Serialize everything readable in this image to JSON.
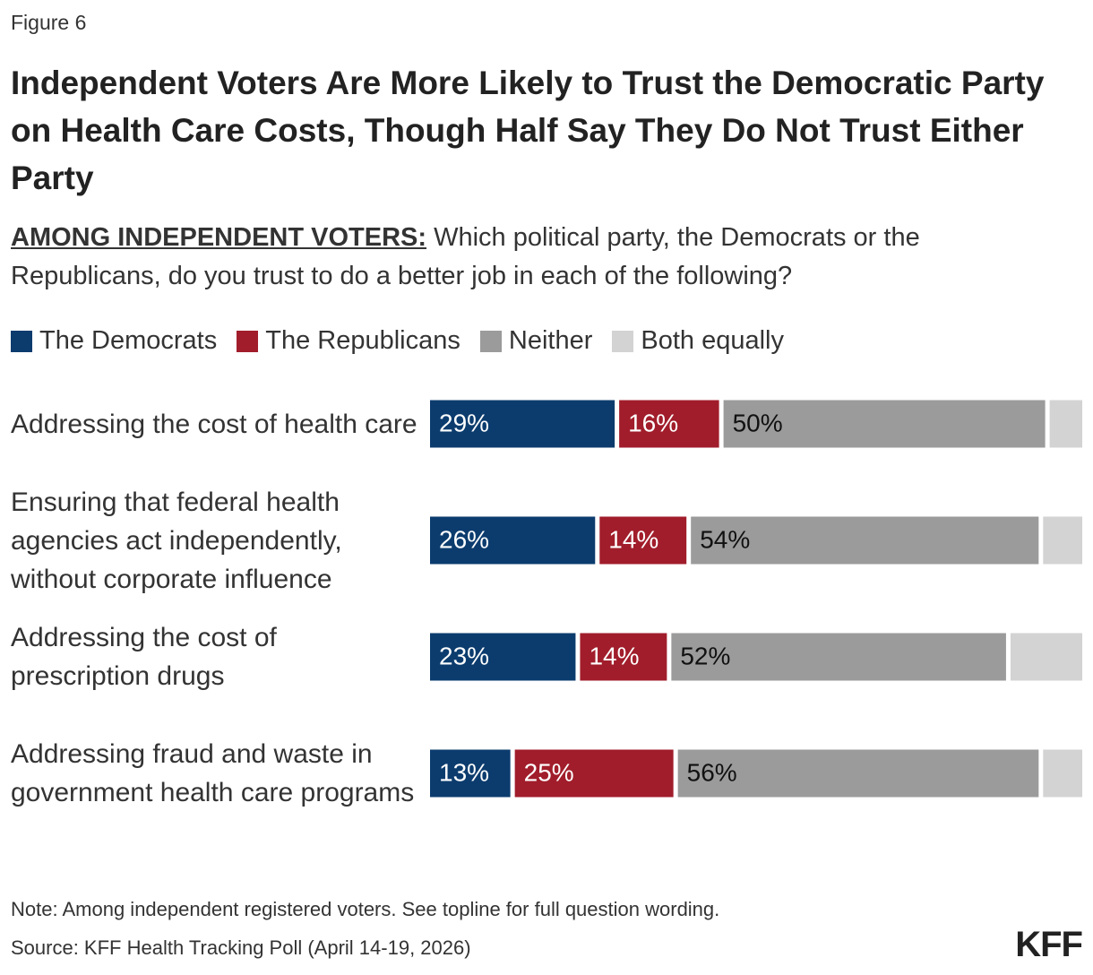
{
  "chart_data": {
    "type": "stacked-bar",
    "figure_label": "Figure 6",
    "title": "Independent Voters Are More Likely to Trust the Democratic Party on Health Care Costs, Though Half Say They Do Not Trust Either Party",
    "subtitle_lead": "AMONG INDEPENDENT VOTERS:",
    "subtitle": "Which political party, the Democrats or the Republicans, do you trust to do a better job in each of the following?",
    "categories": [
      "Addressing the cost of health care",
      "Ensuring that federal health agencies act independently, without corporate influence",
      "Addressing the cost of prescription drugs",
      "Addressing fraud and waste in government health care programs"
    ],
    "series": [
      {
        "name": "The Democrats",
        "color": "#0c3c6e",
        "values": [
          29,
          26,
          23,
          13
        ],
        "value_labels": [
          "29%",
          "26%",
          "23%",
          "13%"
        ]
      },
      {
        "name": "The Republicans",
        "color": "#a11d2b",
        "values": [
          16,
          14,
          14,
          25
        ],
        "value_labels": [
          "16%",
          "14%",
          "14%",
          "25%"
        ]
      },
      {
        "name": "Neither",
        "color": "#9b9b9b",
        "values": [
          50,
          54,
          52,
          56
        ],
        "value_labels": [
          "50%",
          "54%",
          "52%",
          "56%"
        ]
      },
      {
        "name": "Both equally",
        "color": "#d3d3d3",
        "values": [
          5,
          6,
          11,
          6
        ]
      }
    ],
    "xlim": [
      0,
      100
    ],
    "note": "Note: Among independent registered voters. See topline for full question wording.",
    "source": "Source: KFF Health Tracking Poll (April 14-19, 2026)",
    "logo": "KFF"
  }
}
